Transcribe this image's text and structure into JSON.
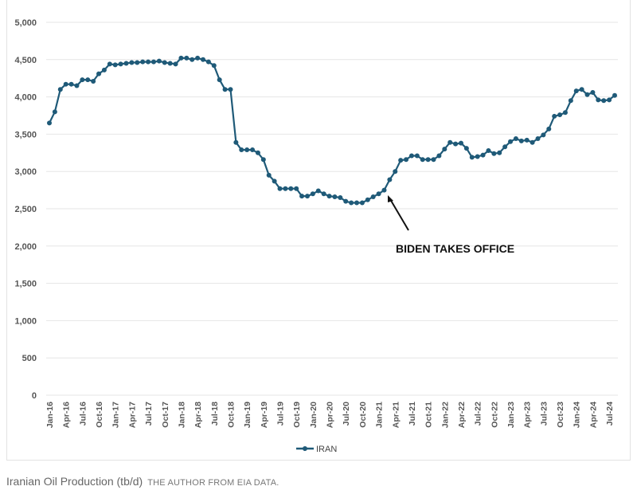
{
  "chart_data": {
    "type": "line",
    "title": "",
    "xlabel": "",
    "ylabel": "",
    "ylim": [
      0,
      5000
    ],
    "yticks": [
      "0",
      "500",
      "1,000",
      "1,500",
      "2,000",
      "2,500",
      "3,000",
      "3,500",
      "4,000",
      "4,500",
      "5,000"
    ],
    "xtick_labels": [
      "Jan-16",
      "Apr-16",
      "Jul-16",
      "Oct-16",
      "Jan-17",
      "Apr-17",
      "Jul-17",
      "Oct-17",
      "Jan-18",
      "Apr-18",
      "Jul-18",
      "Oct-18",
      "Jan-19",
      "Apr-19",
      "Jul-19",
      "Oct-19",
      "Jan-20",
      "Apr-20",
      "Jul-20",
      "Oct-20",
      "Jan-21",
      "Apr-21",
      "Jul-21",
      "Oct-21",
      "Jan-22",
      "Apr-22",
      "Jul-22",
      "Oct-22",
      "Jan-23",
      "Apr-23",
      "Jul-23",
      "Oct-23",
      "Jan-24",
      "Apr-24",
      "Jul-24"
    ],
    "x_start": "Jan-16",
    "x_frequency": "monthly",
    "grid": true,
    "legend_position": "bottom",
    "series": [
      {
        "name": "IRAN",
        "color": "#1f5a78",
        "values": [
          3650,
          3800,
          4100,
          4170,
          4170,
          4150,
          4230,
          4230,
          4210,
          4310,
          4360,
          4440,
          4430,
          4440,
          4450,
          4460,
          4460,
          4470,
          4470,
          4470,
          4480,
          4460,
          4450,
          4440,
          4520,
          4520,
          4500,
          4520,
          4500,
          4470,
          4420,
          4230,
          4100,
          4100,
          3390,
          3290,
          3290,
          3290,
          3250,
          3160,
          2950,
          2870,
          2770,
          2770,
          2770,
          2770,
          2670,
          2670,
          2700,
          2740,
          2700,
          2670,
          2660,
          2650,
          2600,
          2580,
          2580,
          2580,
          2620,
          2660,
          2700,
          2750,
          2890,
          3000,
          3150,
          3160,
          3210,
          3210,
          3160,
          3160,
          3160,
          3210,
          3300,
          3390,
          3370,
          3380,
          3310,
          3190,
          3200,
          3220,
          3280,
          3240,
          3250,
          3330,
          3400,
          3440,
          3410,
          3420,
          3390,
          3440,
          3490,
          3570,
          3740,
          3760,
          3790,
          3950,
          4080,
          4100,
          4030,
          4060,
          3960,
          3950,
          3960,
          4020
        ]
      }
    ],
    "annotations": [
      {
        "text": "BIDEN TAKES OFFICE",
        "at": "Jan-21"
      }
    ]
  },
  "caption": {
    "title": "Iranian Oil Production (tb/d)",
    "source": "THE AUTHOR FROM EIA DATA."
  }
}
